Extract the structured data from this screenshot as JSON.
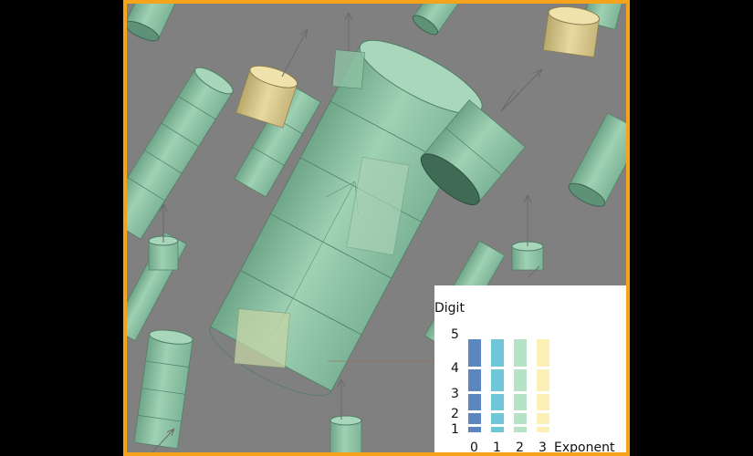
{
  "colors": {
    "background": "#808080",
    "frame_border": "#f5a31a",
    "cylinder_green": "#8ec3a4",
    "cylinder_tan": "#d8c98e",
    "arrow": "#6a6a6a"
  },
  "viewport": {
    "description_icon": "cylinder-glyph-3d-scene"
  },
  "legend": {
    "y_title": "Digit",
    "x_title": "Exponent",
    "digits": [
      "1",
      "2",
      "3",
      "4",
      "5"
    ],
    "exponents": [
      "0",
      "1",
      "2",
      "3"
    ],
    "exponent_colors": [
      "#5b86bf",
      "#6ec6d6",
      "#b6e3c7",
      "#fdf0b4"
    ]
  }
}
